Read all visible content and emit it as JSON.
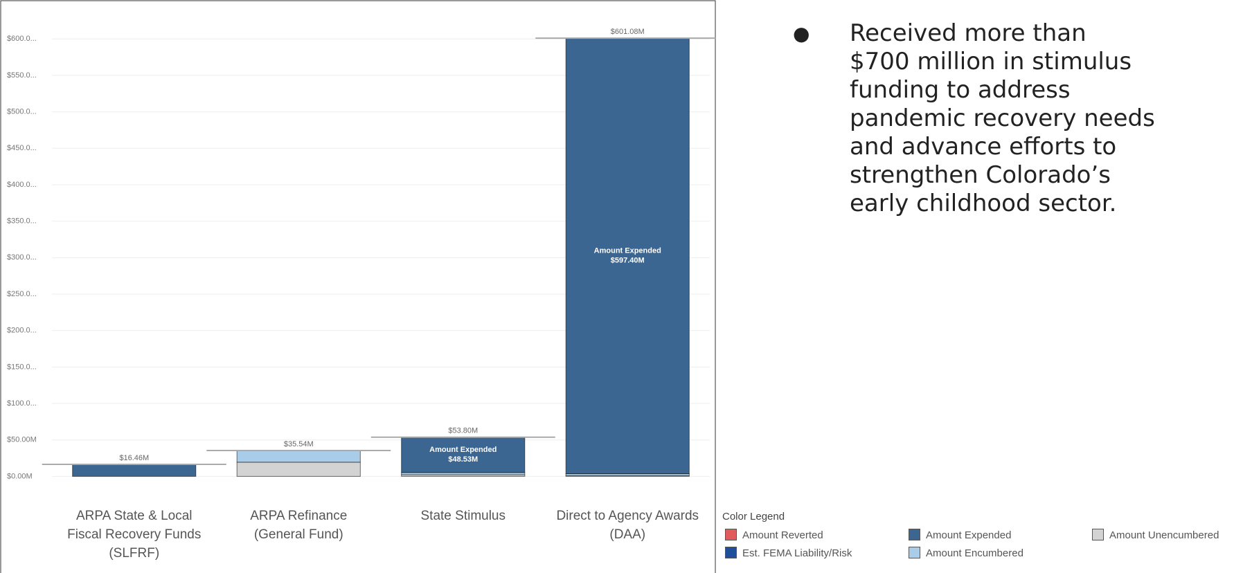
{
  "chart_data": {
    "type": "stacked_bar",
    "categories": [
      "ARPA State & Local Fiscal Recovery Funds (SLFRF)",
      "ARPA Refinance (General Fund)",
      "State Stimulus",
      "Direct to Agency Awards (DAA)"
    ],
    "series": [
      {
        "name": "Amount Reverted",
        "color": "#e05c5c",
        "values": [
          0,
          0,
          0,
          0
        ]
      },
      {
        "name": "Est. FEMA Liability/Risk",
        "color": "#1f4e9a",
        "values": [
          0,
          0,
          0,
          0
        ]
      },
      {
        "name": "Amount Expended",
        "color": "#3b6692",
        "values": [
          16.46,
          0,
          48.53,
          597.4
        ],
        "value_labels": [
          null,
          null,
          "$48.53M",
          "$597.40M"
        ]
      },
      {
        "name": "Amount Encumbered",
        "color": "#a9cde9",
        "values": [
          0,
          16.04,
          3.0,
          2.5
        ]
      },
      {
        "name": "Amount Unencumbered",
        "color": "#d3d3d3",
        "values": [
          0,
          19.5,
          2.27,
          1.18
        ]
      }
    ],
    "totals": {
      "values": [
        16.46,
        35.54,
        53.8,
        601.08
      ],
      "value_labels": [
        "$16.46M",
        "$35.54M",
        "$53.80M",
        "$601.08M"
      ]
    },
    "ylim": [
      -30,
      642
    ],
    "yticks": [
      {
        "value": 0,
        "label": "$0.00M"
      },
      {
        "value": 50,
        "label": "$50.00M"
      },
      {
        "value": 100,
        "label": "$100.0..."
      },
      {
        "value": 150,
        "label": "$150.0..."
      },
      {
        "value": 200,
        "label": "$200.0..."
      },
      {
        "value": 250,
        "label": "$250.0..."
      },
      {
        "value": 300,
        "label": "$300.0..."
      },
      {
        "value": 350,
        "label": "$350.0..."
      },
      {
        "value": 400,
        "label": "$400.0..."
      },
      {
        "value": 450,
        "label": "$450.0..."
      },
      {
        "value": 500,
        "label": "$500.0..."
      },
      {
        "value": 550,
        "label": "$550.0..."
      },
      {
        "value": 600,
        "label": "$600.0..."
      }
    ],
    "grid": true,
    "legend_title": "Color Legend"
  },
  "bullet": {
    "lines": [
      "Received more than",
      "$700 million in stimulus",
      "funding to address",
      "pandemic recovery needs",
      "and advance efforts to",
      "strengthen Colorado’s",
      "early childhood sector."
    ]
  }
}
